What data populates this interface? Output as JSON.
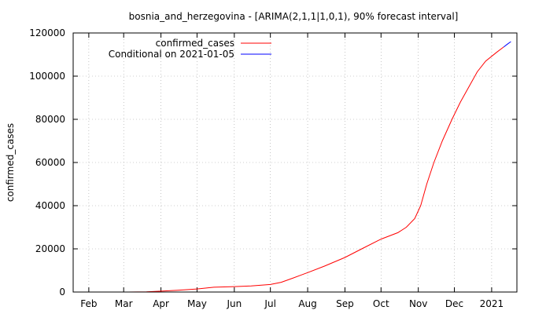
{
  "chart_data": {
    "type": "line",
    "title": "bosnia_and_herzegovina -  [ARIMA(2,1,1|1,0,1), 90% forecast interval]",
    "xlabel": "",
    "ylabel": "confirmed_cases",
    "xlim": [
      "2020-01-19",
      "2021-01-22"
    ],
    "ylim": [
      0,
      120000
    ],
    "grid": true,
    "legend_position": "top-right",
    "x_ticks": [
      {
        "date": "2020-02-01",
        "label": "Feb"
      },
      {
        "date": "2020-03-01",
        "label": "Mar"
      },
      {
        "date": "2020-04-01",
        "label": "Apr"
      },
      {
        "date": "2020-05-01",
        "label": "May"
      },
      {
        "date": "2020-06-01",
        "label": "Jun"
      },
      {
        "date": "2020-07-01",
        "label": "Jul"
      },
      {
        "date": "2020-08-01",
        "label": "Aug"
      },
      {
        "date": "2020-09-01",
        "label": "Sep"
      },
      {
        "date": "2020-10-01",
        "label": "Oct"
      },
      {
        "date": "2020-11-01",
        "label": "Nov"
      },
      {
        "date": "2020-12-01",
        "label": "Dec"
      },
      {
        "date": "2021-01-01",
        "label": "2021"
      }
    ],
    "y_ticks": [
      0,
      20000,
      40000,
      60000,
      80000,
      100000,
      120000
    ],
    "series": [
      {
        "name": "confirmed_cases",
        "color": "#ff0000",
        "points": [
          [
            "2020-03-05",
            0
          ],
          [
            "2020-03-20",
            100
          ],
          [
            "2020-04-01",
            400
          ],
          [
            "2020-04-15",
            800
          ],
          [
            "2020-05-01",
            1400
          ],
          [
            "2020-05-15",
            2200
          ],
          [
            "2020-06-01",
            2500
          ],
          [
            "2020-06-15",
            2800
          ],
          [
            "2020-07-01",
            3500
          ],
          [
            "2020-07-10",
            4500
          ],
          [
            "2020-07-20",
            6500
          ],
          [
            "2020-08-01",
            9000
          ],
          [
            "2020-08-15",
            12000
          ],
          [
            "2020-09-01",
            16000
          ],
          [
            "2020-09-15",
            20000
          ],
          [
            "2020-10-01",
            24500
          ],
          [
            "2020-10-15",
            27500
          ],
          [
            "2020-10-22",
            30000
          ],
          [
            "2020-10-29",
            34000
          ],
          [
            "2020-11-03",
            40000
          ],
          [
            "2020-11-08",
            50000
          ],
          [
            "2020-11-14",
            60000
          ],
          [
            "2020-11-21",
            70000
          ],
          [
            "2020-11-29",
            80000
          ],
          [
            "2020-12-06",
            88000
          ],
          [
            "2020-12-13",
            95000
          ],
          [
            "2020-12-20",
            102000
          ],
          [
            "2020-12-27",
            107000
          ],
          [
            "2021-01-05",
            111000
          ],
          [
            "2021-01-11",
            113500
          ]
        ]
      },
      {
        "name": "Conditional on 2021-01-05",
        "color": "#0000ff",
        "points": [
          [
            "2021-01-11",
            113500
          ],
          [
            "2021-01-14",
            114800
          ],
          [
            "2021-01-17",
            116000
          ]
        ]
      }
    ]
  }
}
